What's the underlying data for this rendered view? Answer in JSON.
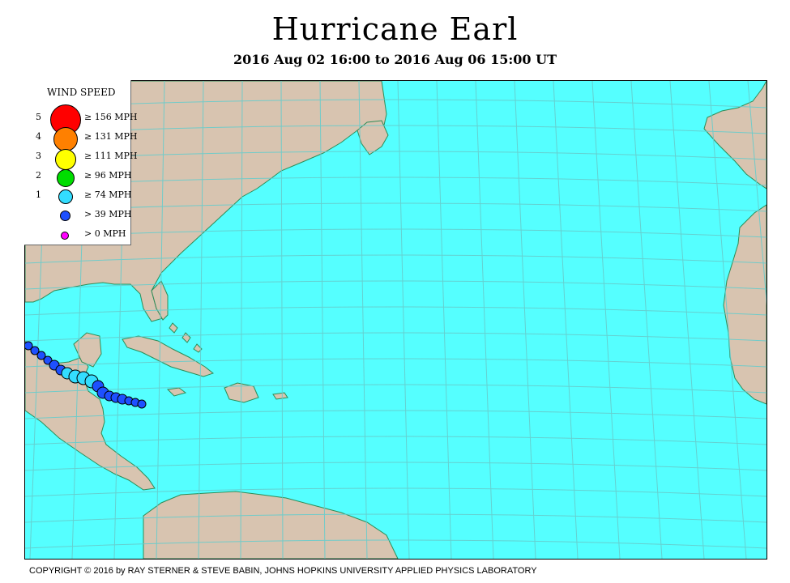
{
  "title": "Hurricane Earl",
  "subtitle": "2016 Aug 02 16:00 to 2016 Aug 06 15:00 UT",
  "copyright": "COPYRIGHT © 2016 by RAY STERNER & STEVE BABIN, JOHNS HOPKINS UNIVERSITY APPLIED PHYSICS LABORATORY",
  "colors": {
    "ocean": "#55ffff",
    "land": "#d8c4b0",
    "grid": "#66cccc",
    "cat5": "#ff0000",
    "cat4": "#ff8000",
    "cat3": "#ffff00",
    "cat2": "#00dd00",
    "cat1": "#33ddff",
    "ts": "#1e50ff",
    "td": "#ff00ff"
  },
  "legend": {
    "title": "WIND SPEED",
    "items": [
      {
        "cat": "5",
        "threshold": "≥ 156 MPH",
        "color": "#ff0000"
      },
      {
        "cat": "4",
        "threshold": "≥ 131 MPH",
        "color": "#ff8000"
      },
      {
        "cat": "3",
        "threshold": "≥ 111 MPH",
        "color": "#ffff00"
      },
      {
        "cat": "2",
        "threshold": "≥ 96 MPH",
        "color": "#00dd00"
      },
      {
        "cat": "1",
        "threshold": "≥ 74 MPH",
        "color": "#33ddff"
      },
      {
        "cat": "",
        "threshold": "> 39 MPH",
        "color": "#1e50ff"
      },
      {
        "cat": "",
        "threshold": "> 0 MPH",
        "color": "#ff00ff"
      }
    ]
  }
}
